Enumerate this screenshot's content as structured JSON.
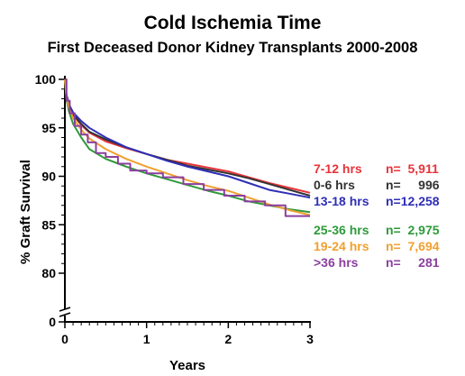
{
  "chart_data": {
    "type": "line",
    "title": "Cold Ischemia Time",
    "subtitle": "First Deceased Donor Kidney Transplants 2000-2008",
    "xlabel": "Years",
    "ylabel": "% Graft Survival",
    "xlim": [
      0,
      3
    ],
    "ylim": [
      80,
      100
    ],
    "y_axis_break": true,
    "x_ticks": [
      "0",
      "1",
      "2",
      "3"
    ],
    "y_ticks": [
      "100",
      "95",
      "90",
      "85",
      "80",
      "0"
    ],
    "legend_position": "right",
    "series": [
      {
        "name": "7-12 hrs",
        "n": "n=  5,911",
        "color": "#e8333a",
        "x": [
          0,
          0.02,
          0.05,
          0.1,
          0.2,
          0.3,
          0.5,
          0.75,
          1.0,
          1.25,
          1.5,
          1.75,
          2.0,
          2.25,
          2.5,
          2.75,
          3.0
        ],
        "y": [
          100,
          98.3,
          97.3,
          96.3,
          95.3,
          94.5,
          93.6,
          92.9,
          92.3,
          91.7,
          91.3,
          90.9,
          90.5,
          89.9,
          89.3,
          88.8,
          88.3
        ]
      },
      {
        "name": "0-6 hrs",
        "n": "n=     996",
        "color": "#333333",
        "x": [
          0,
          0.02,
          0.05,
          0.1,
          0.2,
          0.3,
          0.5,
          0.75,
          1.0,
          1.25,
          1.5,
          1.75,
          2.0,
          2.25,
          2.5,
          2.75,
          3.0
        ],
        "y": [
          100,
          98.4,
          97.5,
          96.4,
          95.4,
          94.6,
          93.8,
          93.0,
          92.3,
          91.7,
          91.1,
          90.7,
          90.3,
          89.8,
          89.2,
          88.6,
          88.0
        ]
      },
      {
        "name": "13-18 hrs",
        "n": "n=12,258",
        "color": "#2e2eb8",
        "x": [
          0,
          0.02,
          0.05,
          0.1,
          0.2,
          0.3,
          0.5,
          0.75,
          1.0,
          1.25,
          1.5,
          1.75,
          2.0,
          2.25,
          2.5,
          2.75,
          3.0
        ],
        "y": [
          100,
          98.3,
          97.4,
          96.6,
          95.7,
          95.0,
          94.0,
          93.0,
          92.3,
          91.6,
          91.0,
          90.5,
          90.0,
          89.3,
          88.6,
          88.2,
          87.8
        ]
      },
      {
        "name": "25-36 hrs",
        "n": "n=  2,975",
        "color": "#2e9a3a",
        "x": [
          0,
          0.02,
          0.05,
          0.1,
          0.2,
          0.3,
          0.5,
          0.75,
          1.0,
          1.25,
          1.5,
          1.75,
          2.0,
          2.25,
          2.5,
          2.75,
          3.0
        ],
        "y": [
          100,
          97.9,
          96.7,
          95.4,
          94.0,
          92.8,
          91.8,
          91.0,
          90.3,
          89.7,
          89.1,
          88.5,
          88.0,
          87.4,
          87.0,
          86.6,
          86.3
        ]
      },
      {
        "name": "19-24 hrs",
        "n": "n=  7,694",
        "color": "#f0a030",
        "x": [
          0,
          0.02,
          0.05,
          0.1,
          0.2,
          0.3,
          0.5,
          0.75,
          1.0,
          1.25,
          1.5,
          1.75,
          2.0,
          2.25,
          2.5,
          2.75,
          3.0
        ],
        "y": [
          100,
          98.1,
          97.1,
          96.0,
          94.8,
          93.9,
          92.8,
          91.8,
          91.0,
          90.3,
          89.6,
          89.0,
          88.5,
          87.8,
          87.1,
          86.5,
          86.0
        ]
      },
      {
        "name": ">36 hrs",
        "n": "n=     281",
        "color": "#8b3f9e",
        "x": [
          0,
          0.02,
          0.06,
          0.12,
          0.2,
          0.28,
          0.38,
          0.5,
          0.65,
          0.8,
          1.0,
          1.2,
          1.45,
          1.7,
          1.95,
          2.2,
          2.45,
          2.7,
          3.0
        ],
        "y": [
          100,
          97.8,
          96.5,
          95.2,
          94.3,
          93.5,
          92.4,
          92.0,
          91.3,
          90.6,
          90.3,
          89.9,
          89.2,
          88.6,
          88.0,
          87.4,
          87.0,
          85.9,
          85.9
        ]
      }
    ]
  }
}
